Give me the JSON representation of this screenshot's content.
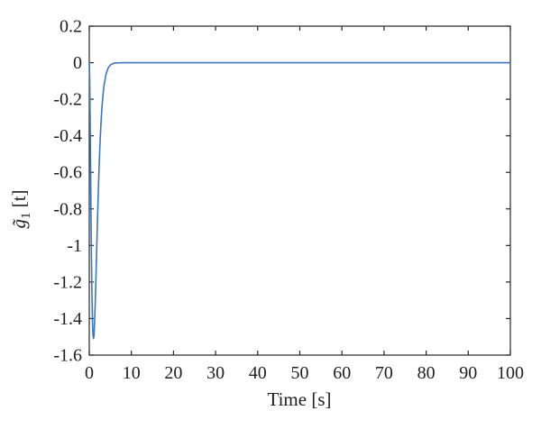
{
  "figure": {
    "background": "#ffffff"
  },
  "chart_data": {
    "type": "line",
    "title": "",
    "xlabel": "Time [s]",
    "ylabel": "g̃₁ [t]",
    "ylabel_parts": {
      "base": "g̃",
      "sub": "1",
      "rest": " [t]"
    },
    "xlim": [
      0,
      100
    ],
    "ylim": [
      -1.6,
      0.2
    ],
    "xticks": [
      0,
      10,
      20,
      30,
      40,
      50,
      60,
      70,
      80,
      90,
      100
    ],
    "xtick_labels": [
      "0",
      "10",
      "20",
      "30",
      "40",
      "50",
      "60",
      "70",
      "80",
      "90",
      "100"
    ],
    "yticks": [
      0.2,
      0,
      -0.2,
      -0.4,
      -0.6,
      -0.8,
      -1,
      -1.2,
      -1.4,
      -1.6
    ],
    "ytick_labels": [
      "0.2",
      "0",
      "-0.2",
      "-0.4",
      "-0.6",
      "-0.8",
      "-1",
      "-1.2",
      "-1.4",
      "-1.6"
    ],
    "grid": false,
    "axis_color": "#262626",
    "text_color": "#1f1f1f",
    "series": [
      {
        "name": "series-1",
        "color": "#3d74c4",
        "points": [
          [
            0,
            0
          ],
          [
            0.1,
            -0.091
          ],
          [
            0.2,
            -0.299
          ],
          [
            0.3,
            -0.551
          ],
          [
            0.4,
            -0.802
          ],
          [
            0.5,
            -1.026
          ],
          [
            0.6,
            -1.21
          ],
          [
            0.7,
            -1.349
          ],
          [
            0.8,
            -1.442
          ],
          [
            0.9,
            -1.494
          ],
          [
            1.0,
            -1.51
          ],
          [
            1.1,
            -1.497
          ],
          [
            1.2,
            -1.458
          ],
          [
            1.4,
            -1.33
          ],
          [
            1.6,
            -1.166
          ],
          [
            1.8,
            -0.988
          ],
          [
            2.0,
            -0.818
          ],
          [
            2.25,
            -0.628
          ],
          [
            2.5,
            -0.47
          ],
          [
            2.75,
            -0.345
          ],
          [
            3.0,
            -0.249
          ],
          [
            3.25,
            -0.177
          ],
          [
            3.5,
            -0.125
          ],
          [
            4.0,
            -0.06
          ],
          [
            4.5,
            -0.028
          ],
          [
            5.0,
            -0.013
          ],
          [
            5.5,
            -0.006
          ],
          [
            6.0,
            -0.002
          ],
          [
            7.0,
            -0.001
          ],
          [
            8.0,
            0
          ],
          [
            10,
            0
          ],
          [
            15,
            0
          ],
          [
            20,
            0
          ],
          [
            30,
            0
          ],
          [
            40,
            0
          ],
          [
            50,
            0
          ],
          [
            60,
            0
          ],
          [
            70,
            0
          ],
          [
            80,
            0
          ],
          [
            90,
            0
          ],
          [
            100,
            0
          ]
        ]
      }
    ]
  }
}
